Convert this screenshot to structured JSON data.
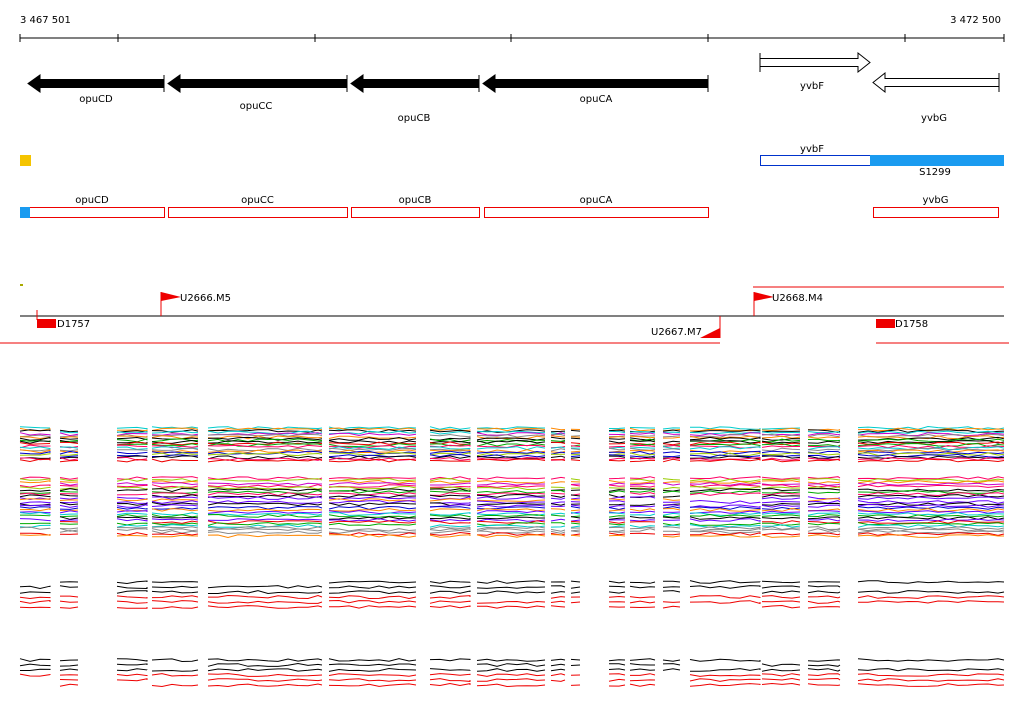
{
  "scale": {
    "start": "3 467 501",
    "end": "3 472 500"
  },
  "genes": [
    {
      "label": "opuCD"
    },
    {
      "label": "opuCC"
    },
    {
      "label": "opuCB"
    },
    {
      "label": "opuCA"
    },
    {
      "label": "yvbF"
    },
    {
      "label": "yvbG"
    }
  ],
  "segments": [
    {
      "label": "yvbF"
    },
    {
      "label": "S1299"
    }
  ],
  "transcripts": [
    {
      "label": "opuCD"
    },
    {
      "label": "opuCC"
    },
    {
      "label": "opuCB"
    },
    {
      "label": "opuCA"
    },
    {
      "label": "yvbG"
    }
  ],
  "sites": [
    {
      "label": "U2666.M5"
    },
    {
      "label": "U2668.M4"
    },
    {
      "label": "U2667.M7"
    },
    {
      "label": "D1757"
    },
    {
      "label": "D1758"
    }
  ]
}
